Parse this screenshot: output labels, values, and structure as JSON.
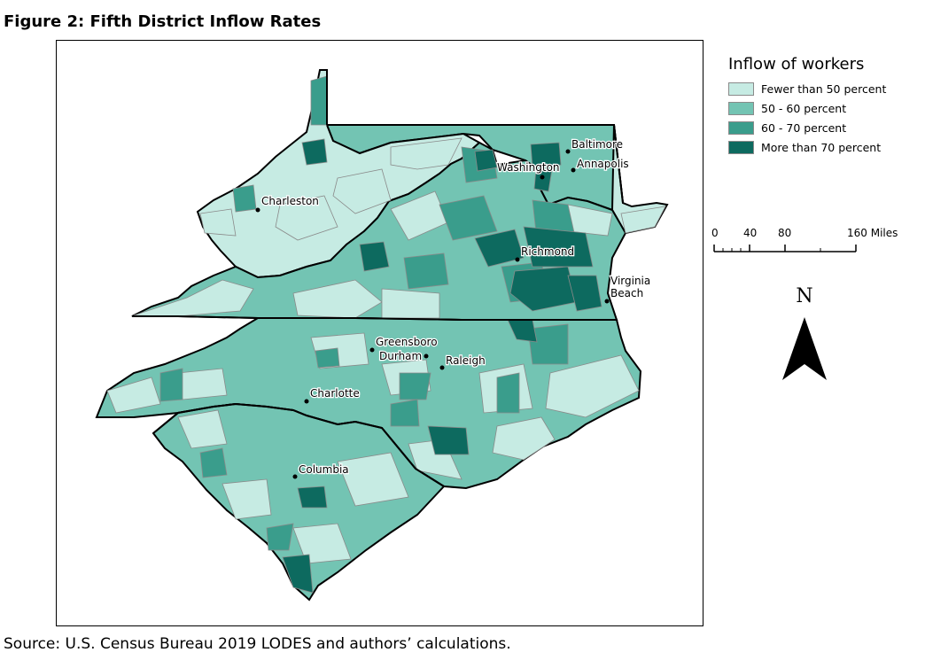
{
  "figure": {
    "title": "Figure 2: Fifth District Inflow Rates",
    "source": "Source: U.S. Census Bureau 2019 LODES and authors’ calculations."
  },
  "legend": {
    "title": "Inflow of workers",
    "items": [
      {
        "label": "Fewer than 50 percent",
        "color": "#c6ebe3"
      },
      {
        "label": "50 - 60 percent",
        "color": "#73c4b3"
      },
      {
        "label": "60 - 70 percent",
        "color": "#3a9d8c"
      },
      {
        "label": "More than 70 percent",
        "color": "#0d6a5f"
      }
    ]
  },
  "scale_bar": {
    "labels": [
      "0",
      "40",
      "80",
      "160 Miles"
    ]
  },
  "north_arrow": {
    "label": "N"
  },
  "cities": [
    {
      "name": "Baltimore"
    },
    {
      "name": "Annapolis"
    },
    {
      "name": "Washington"
    },
    {
      "name": "Charleston"
    },
    {
      "name": "Richmond"
    },
    {
      "name": "Virginia"
    },
    {
      "name": "Beach"
    },
    {
      "name": "Greensboro"
    },
    {
      "name": "Durham"
    },
    {
      "name": "Raleigh"
    },
    {
      "name": "Charlotte"
    },
    {
      "name": "Columbia"
    }
  ]
}
